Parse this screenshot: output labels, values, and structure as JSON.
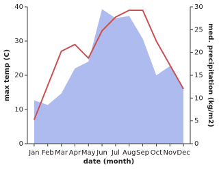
{
  "chart_data": {
    "type": "line",
    "categories": [
      "Jan",
      "Feb",
      "Mar",
      "Apr",
      "May",
      "Jun",
      "Jul",
      "Aug",
      "Sep",
      "Oct",
      "Nov",
      "Dec"
    ],
    "xlabel": "date (month)",
    "ylabel": "max temp (C)",
    "y2label": "med. precipitation (kg/m2)",
    "ylim": [
      0,
      40
    ],
    "yticks": [
      0,
      10,
      20,
      30,
      40
    ],
    "y2lim": [
      0,
      30
    ],
    "y2ticks": [
      0,
      5,
      10,
      15,
      20,
      25,
      30
    ],
    "series": [
      {
        "type": "area",
        "axis": "y2",
        "color": "#aebbef",
        "values": [
          9.5,
          8.5,
          11,
          16.5,
          18,
          29.5,
          27.5,
          28,
          23,
          15,
          17,
          12
        ]
      },
      {
        "type": "line",
        "axis": "y",
        "color": "#c85252",
        "values": [
          7,
          17,
          27,
          29,
          25,
          33,
          37,
          39,
          39,
          30,
          23,
          16
        ]
      }
    ]
  }
}
